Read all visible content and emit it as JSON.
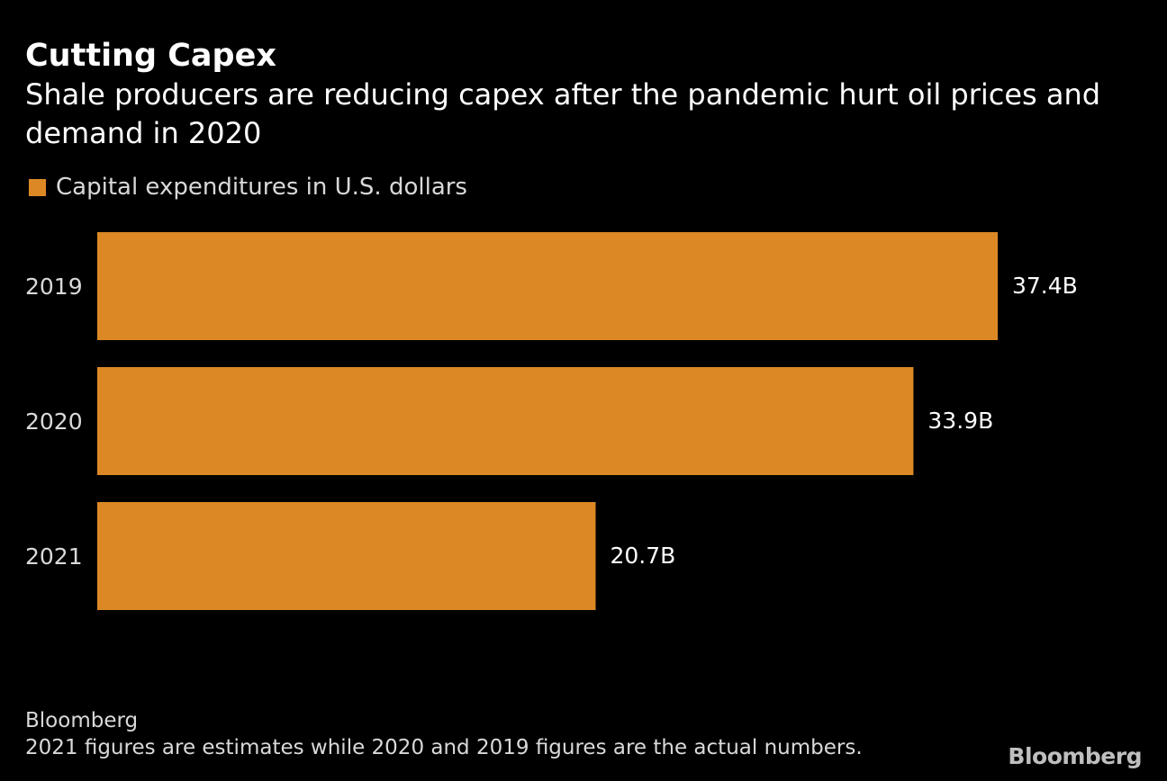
{
  "chart_data": {
    "type": "bar",
    "orientation": "horizontal",
    "title": "Cutting Capex",
    "subtitle": "Shale producers are reducing capex after the pandemic hurt oil prices and demand in 2020",
    "legend": [
      {
        "label": "Capital expenditures in U.S. dollars",
        "color": "#dc8925"
      }
    ],
    "categories": [
      "2019",
      "2020",
      "2021"
    ],
    "values": [
      37.4,
      33.9,
      20.7
    ],
    "value_labels": [
      "37.4B",
      "33.9B",
      "20.7B"
    ],
    "unit": "B",
    "xlim": [
      0,
      37.4
    ],
    "grid": false,
    "source": "Bloomberg",
    "note": "2021 figures are estimates while 2020 and 2019 figures are the actual numbers."
  },
  "branding": {
    "logo_text": "Bloomberg"
  },
  "colors": {
    "background": "#000000",
    "bar": "#dc8925",
    "text": "#ffffff",
    "muted_text": "#d9d9d9"
  }
}
